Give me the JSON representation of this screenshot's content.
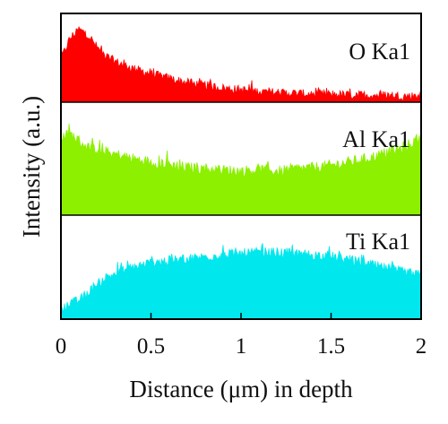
{
  "chart_data": {
    "type": "area",
    "xlabel": "Distance (μm) in depth",
    "ylabel": "Intensity (a.u.)",
    "xlim": [
      0,
      2
    ],
    "x_ticks": [
      "0",
      "0.5",
      "1",
      "1.5",
      "2"
    ],
    "grid": false,
    "legend": "none",
    "panel_ylim": [
      0,
      1
    ],
    "series": [
      {
        "name": "O Ka1",
        "color": "#ff0000",
        "x": [
          0,
          0.05,
          0.1,
          0.15,
          0.2,
          0.25,
          0.3,
          0.4,
          0.5,
          0.6,
          0.7,
          0.8,
          0.9,
          1.0,
          1.1,
          1.2,
          1.3,
          1.4,
          1.5,
          1.6,
          1.7,
          1.8,
          1.9,
          2.0
        ],
        "values": [
          0.48,
          0.72,
          0.82,
          0.76,
          0.62,
          0.52,
          0.46,
          0.38,
          0.32,
          0.27,
          0.22,
          0.19,
          0.16,
          0.14,
          0.12,
          0.11,
          0.1,
          0.09,
          0.09,
          0.08,
          0.08,
          0.08,
          0.07,
          0.07
        ]
      },
      {
        "name": "Al Ka1",
        "color": "#8cf000",
        "x": [
          0,
          0.05,
          0.1,
          0.15,
          0.2,
          0.3,
          0.4,
          0.5,
          0.6,
          0.7,
          0.8,
          0.9,
          1.0,
          1.1,
          1.2,
          1.3,
          1.4,
          1.5,
          1.6,
          1.7,
          1.8,
          1.9,
          2.0
        ],
        "values": [
          0.68,
          0.72,
          0.66,
          0.6,
          0.58,
          0.54,
          0.5,
          0.47,
          0.45,
          0.42,
          0.41,
          0.4,
          0.39,
          0.4,
          0.39,
          0.41,
          0.42,
          0.44,
          0.47,
          0.5,
          0.55,
          0.6,
          0.68
        ]
      },
      {
        "name": "Ti Ka1",
        "color": "#00e8ee",
        "x": [
          0,
          0.05,
          0.1,
          0.15,
          0.2,
          0.25,
          0.3,
          0.4,
          0.5,
          0.6,
          0.7,
          0.8,
          0.9,
          1.0,
          1.1,
          1.2,
          1.3,
          1.4,
          1.5,
          1.6,
          1.7,
          1.8,
          1.9,
          2.0
        ],
        "values": [
          0.1,
          0.14,
          0.18,
          0.25,
          0.34,
          0.4,
          0.44,
          0.5,
          0.54,
          0.56,
          0.58,
          0.6,
          0.62,
          0.63,
          0.64,
          0.64,
          0.63,
          0.62,
          0.6,
          0.57,
          0.53,
          0.49,
          0.45,
          0.42
        ]
      }
    ]
  }
}
